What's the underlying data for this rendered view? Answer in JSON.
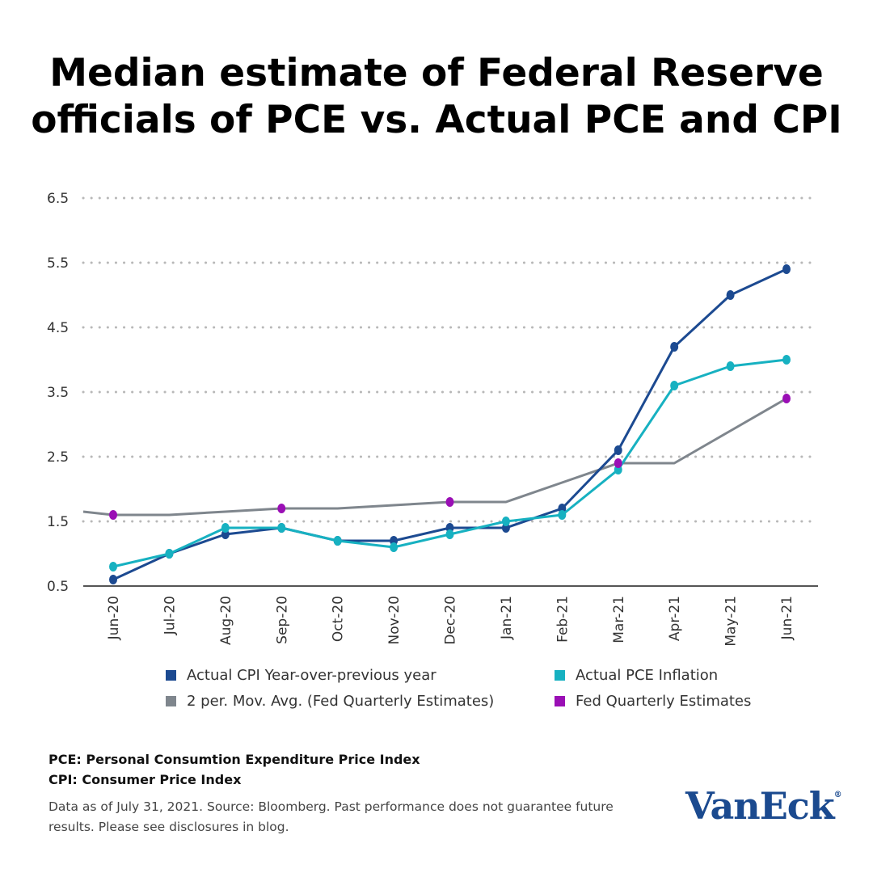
{
  "title_line1": "Median estimate of Federal Reserve",
  "title_line2": "officials of PCE vs. Actual PCE and CPI",
  "chart_data": {
    "type": "line",
    "title": "Median estimate of Federal Reserve officials of PCE vs. Actual PCE and CPI",
    "xlabel": "",
    "ylabel": "",
    "ylim": [
      0.5,
      6.5
    ],
    "yticks": [
      "0.5",
      "1.5",
      "2.5",
      "3.5",
      "4.5",
      "5.5",
      "6.5"
    ],
    "grid": "horizontal dotted",
    "legend_position": "bottom",
    "categories": [
      "Jun-20",
      "Jul-20",
      "Aug-20",
      "Sep-20",
      "Oct-20",
      "Nov-20",
      "Dec-20",
      "Jan-21",
      "Feb-21",
      "Mar-21",
      "Apr-21",
      "May-21",
      "Jun-21"
    ],
    "series": [
      {
        "name": "2 per. Mov. Avg. (Fed Quarterly Estimates)",
        "color": "#7f868d",
        "markers": false,
        "lead_in_value": 1.65,
        "values": [
          1.6,
          1.6,
          1.65,
          1.7,
          1.7,
          1.75,
          1.8,
          1.8,
          2.1,
          2.4,
          2.4,
          2.9,
          3.4
        ]
      },
      {
        "name": "Actual CPI Year-over-previous year",
        "color": "#1c4a91",
        "markers": true,
        "values": [
          0.6,
          1.0,
          1.3,
          1.4,
          1.2,
          1.2,
          1.4,
          1.4,
          1.7,
          2.6,
          4.2,
          5.0,
          5.4
        ]
      },
      {
        "name": "Actual PCE Inflation",
        "color": "#17b1c1",
        "markers": true,
        "values": [
          0.8,
          1.0,
          1.4,
          1.4,
          1.2,
          1.1,
          1.3,
          1.5,
          1.6,
          2.3,
          3.6,
          3.9,
          4.0
        ]
      },
      {
        "name": "Fed Quarterly Estimates",
        "color": "#9a0fb5",
        "markers": true,
        "line": false,
        "values": [
          1.6,
          null,
          null,
          1.7,
          null,
          null,
          1.8,
          null,
          null,
          2.4,
          null,
          null,
          3.4
        ]
      }
    ]
  },
  "notes": [
    "PCE: Personal Consumtion Expenditure Price Index",
    "CPI: Consumer Price Index"
  ],
  "footer_line1": "Data as of July 31, 2021. Source: Bloomberg. Past performance does not guarantee future",
  "footer_line2": "results. Please see disclosures in blog.",
  "logo": "VanEck"
}
